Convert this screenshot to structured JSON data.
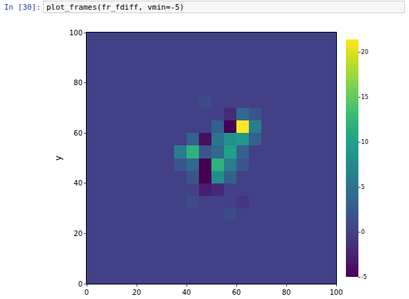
{
  "notebook": {
    "prompt": "In [30]:",
    "code": "plot_frames(fr_fdiff, vmin=-5)"
  },
  "chart_data": {
    "type": "heatmap",
    "ylabel": "y",
    "color": "Viridis",
    "xlim": [
      0,
      100
    ],
    "ylim": [
      0,
      100
    ],
    "xticks": [
      0,
      20,
      40,
      60,
      80,
      100
    ],
    "yticks": [
      0,
      20,
      40,
      60,
      80,
      100
    ],
    "x": [
      0,
      5,
      10,
      15,
      20,
      25,
      30,
      35,
      40,
      45,
      50,
      55,
      60,
      65,
      70,
      75,
      80,
      85,
      90,
      95,
      100
    ],
    "y": [
      0,
      5,
      10,
      15,
      20,
      25,
      30,
      35,
      40,
      45,
      50,
      55,
      60,
      65,
      70,
      75,
      80,
      85,
      90,
      95,
      100
    ],
    "z": [
      [
        0,
        0,
        0,
        0,
        0,
        0,
        0,
        0,
        0,
        0,
        0,
        0,
        0,
        0,
        0,
        0,
        0,
        0,
        0,
        0
      ],
      [
        0,
        0,
        0,
        0,
        0,
        0,
        0,
        0,
        0,
        0,
        0,
        0,
        0,
        0,
        0,
        0,
        0,
        0,
        0,
        0
      ],
      [
        0,
        0,
        0,
        0,
        0,
        0,
        0,
        0,
        0,
        0,
        0,
        0,
        0,
        0,
        0,
        0,
        0,
        0,
        0,
        0
      ],
      [
        0,
        0,
        0,
        0,
        0,
        0,
        0,
        0,
        0,
        0,
        0,
        0,
        0,
        0,
        0,
        0,
        0,
        0,
        0,
        0
      ],
      [
        0,
        0,
        0,
        0,
        0,
        0,
        0,
        0,
        0,
        0,
        0,
        0,
        0,
        0,
        0,
        0,
        0,
        0,
        0,
        0
      ],
      [
        0,
        0,
        0,
        0,
        0,
        0,
        0,
        0,
        0,
        0,
        0,
        1,
        0,
        0,
        0,
        0,
        0,
        0,
        0,
        0
      ],
      [
        0,
        0,
        0,
        0,
        0,
        0,
        0,
        0,
        1,
        0,
        0,
        0,
        -1,
        0,
        0,
        0,
        0,
        0,
        0,
        0
      ],
      [
        0,
        0,
        0,
        0,
        0,
        0,
        0,
        0,
        0,
        -3,
        -2,
        0,
        0,
        0,
        0,
        0,
        0,
        0,
        0,
        0
      ],
      [
        0,
        0,
        0,
        0,
        0,
        0,
        0,
        0,
        2,
        -5,
        8,
        3,
        0,
        0,
        0,
        0,
        0,
        0,
        0,
        0
      ],
      [
        0,
        0,
        0,
        0,
        0,
        0,
        0,
        2,
        4,
        -5,
        12,
        6,
        2,
        0,
        0,
        0,
        0,
        0,
        0,
        0
      ],
      [
        0,
        0,
        0,
        0,
        0,
        0,
        0,
        6,
        12,
        2,
        4,
        10,
        3,
        0,
        0,
        0,
        0,
        0,
        0,
        0
      ],
      [
        0,
        0,
        0,
        0,
        0,
        0,
        0,
        0,
        3,
        -4,
        5,
        8,
        9,
        3,
        0,
        0,
        0,
        0,
        0,
        0
      ],
      [
        0,
        0,
        0,
        0,
        0,
        0,
        0,
        0,
        0,
        0,
        3,
        -5,
        22,
        6,
        0,
        0,
        0,
        0,
        0,
        0
      ],
      [
        0,
        0,
        0,
        0,
        0,
        0,
        0,
        0,
        0,
        0,
        0,
        -2,
        4,
        2,
        0,
        0,
        0,
        0,
        0,
        0
      ],
      [
        0,
        0,
        0,
        0,
        0,
        0,
        0,
        0,
        0,
        1,
        0,
        0,
        0,
        0,
        0,
        0,
        0,
        0,
        0,
        0
      ],
      [
        0,
        0,
        0,
        0,
        0,
        0,
        0,
        0,
        0,
        0,
        0,
        0,
        0,
        0,
        0,
        0,
        0,
        0,
        0,
        0
      ],
      [
        0,
        0,
        0,
        0,
        0,
        0,
        0,
        0,
        0,
        0,
        0,
        0,
        0,
        0,
        0,
        0,
        0,
        0,
        0,
        0
      ],
      [
        0,
        0,
        0,
        0,
        0,
        0,
        0,
        0,
        0,
        0,
        0,
        0,
        0,
        0,
        0,
        0,
        0,
        0,
        0,
        0
      ],
      [
        0,
        0,
        0,
        0,
        0,
        0,
        0,
        0,
        0,
        0,
        0,
        0,
        0,
        0,
        0,
        0,
        0,
        0,
        0,
        0
      ],
      [
        0,
        0,
        0,
        0,
        0,
        0,
        0,
        0,
        0,
        0,
        0,
        0,
        0,
        0,
        0,
        0,
        0,
        0,
        0,
        0
      ]
    ],
    "colorbar": {
      "range": [
        -5,
        21.4
      ],
      "ticks": [
        -5,
        0,
        5,
        10,
        15,
        20
      ]
    }
  }
}
